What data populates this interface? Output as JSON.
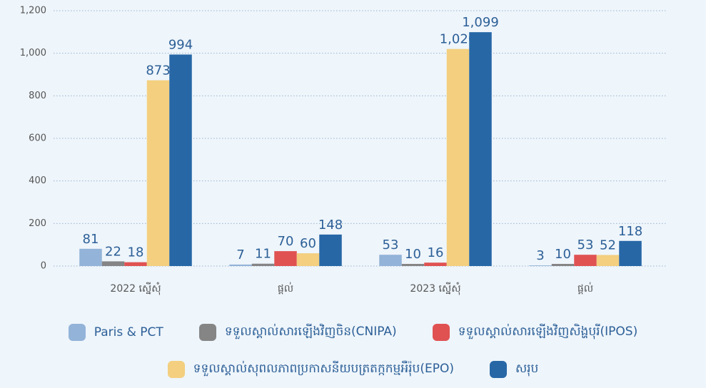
{
  "chart_data": {
    "type": "bar",
    "categories": [
      "2022 ស្នើសុំ",
      "ផ្តល់",
      "2023 ស្នើសុំ",
      "ផ្តល់"
    ],
    "series": [
      {
        "name": "Paris & PCT",
        "color": "#93b3d8",
        "values": [
          81,
          7,
          53,
          3
        ]
      },
      {
        "name": "ទទួលស្គាល់សារឡើងវិញចិន(CNIPA)",
        "color": "#858585",
        "values": [
          22,
          11,
          10,
          10
        ]
      },
      {
        "name": "ទទួលស្គាល់សារឡើងវិញសិង្ហបុរី(IPOS)",
        "color": "#e05252",
        "values": [
          18,
          70,
          16,
          53
        ]
      },
      {
        "name": "ទទួលស្គាល់សុពលភាពប្រកាសនីយបត្រតក្កកម្មអឺរ៉ុប(EPO)",
        "color": "#f3cf7f",
        "values": [
          873,
          60,
          1020,
          52
        ],
        "value_labels": [
          "873",
          "60",
          "1,020",
          "52"
        ]
      },
      {
        "name": "សរុប",
        "color": "#2767a6",
        "values": [
          994,
          148,
          1099,
          118
        ],
        "value_labels": [
          "994",
          "148",
          "1,099",
          "118"
        ]
      }
    ],
    "ylim": [
      0,
      1200
    ],
    "yticks": [
      0,
      200,
      400,
      600,
      800,
      {
        "value": 1000,
        "label": "1,000"
      },
      {
        "value": 1200,
        "label": "1,200"
      }
    ],
    "grid": true,
    "legend": "bottom"
  }
}
